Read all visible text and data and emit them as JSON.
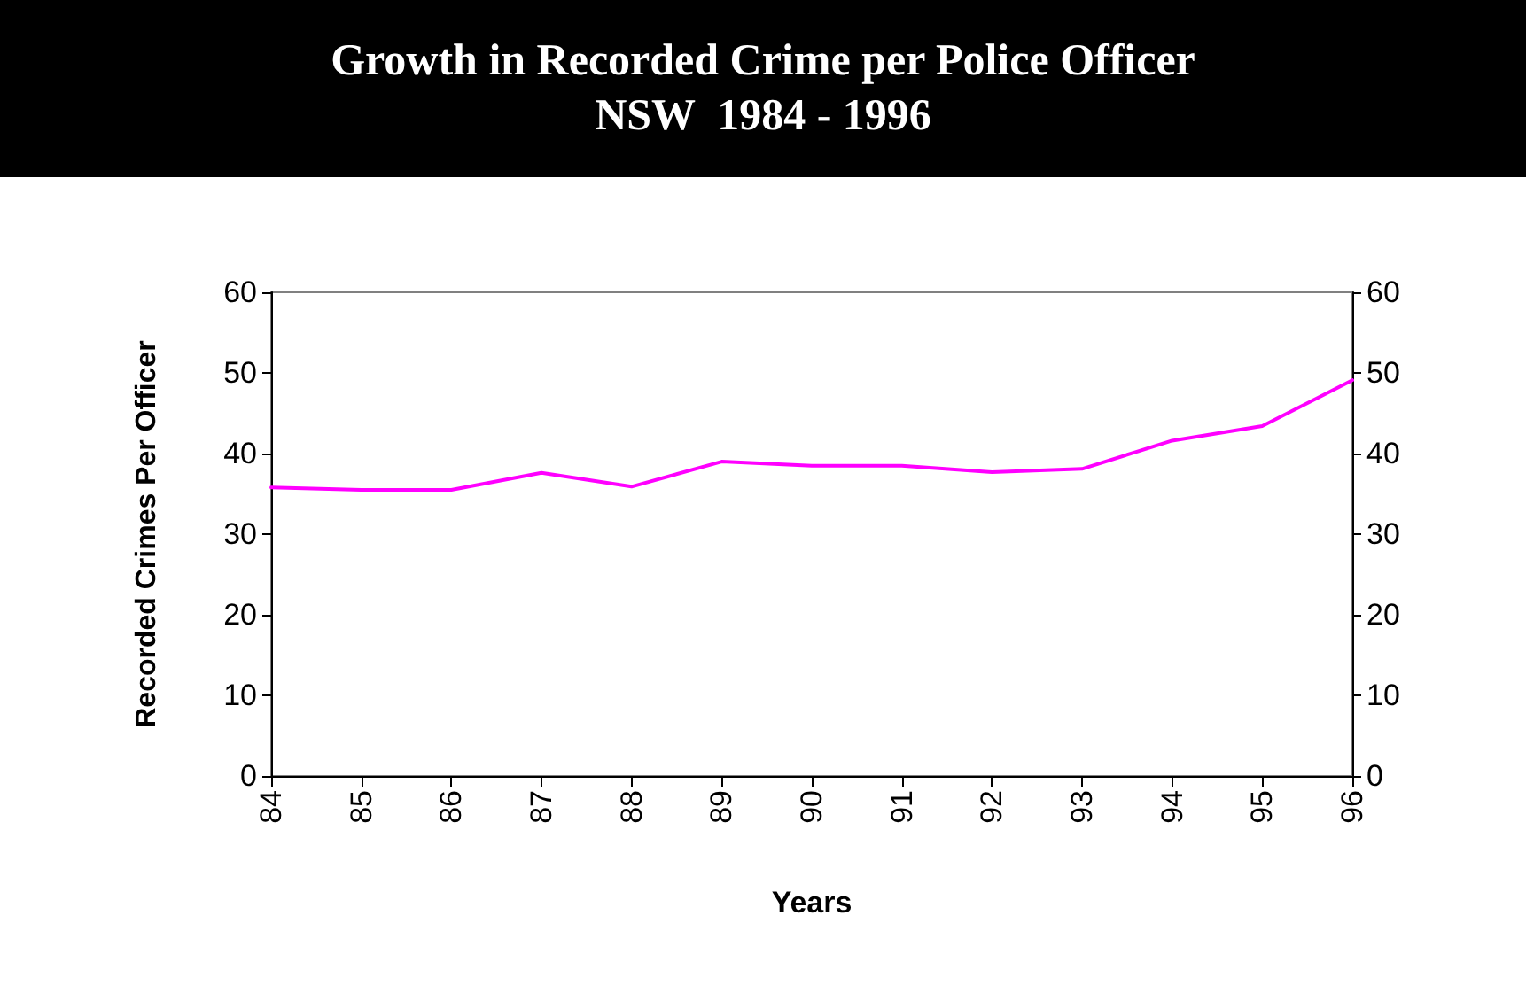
{
  "chart_data": {
    "type": "line",
    "title": "Growth in Recorded Crime per Police Officer\nNSW  1984 - 1996",
    "xlabel": "Years",
    "ylabel": "Recorded Crimes Per Officer",
    "categories": [
      "84",
      "85",
      "86",
      "87",
      "88",
      "89",
      "90",
      "91",
      "92",
      "93",
      "94",
      "95",
      "96"
    ],
    "series": [
      {
        "color": "#ff00ff",
        "values": [
          35.8,
          35.5,
          35.5,
          37.6,
          35.9,
          39.0,
          38.5,
          38.5,
          37.7,
          38.1,
          41.6,
          43.4,
          49.1
        ]
      }
    ],
    "ylim": [
      0,
      60
    ],
    "yticks": [
      0,
      10,
      20,
      30,
      40,
      50,
      60
    ],
    "y2lim": [
      0,
      60
    ],
    "y2ticks": [
      0,
      10,
      20,
      30,
      40,
      50,
      60
    ],
    "grid": false,
    "marker": "none",
    "line_style": "solid"
  }
}
